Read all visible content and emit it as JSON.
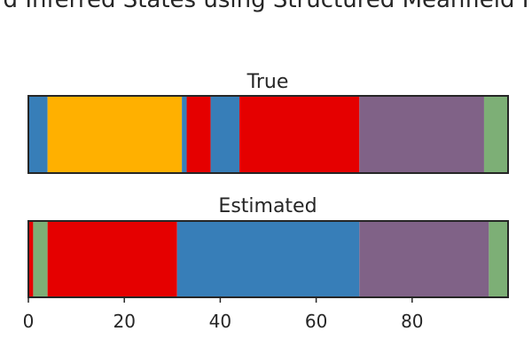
{
  "chart_data": {
    "type": "bar",
    "title": "d Inferred States using Structured Meanfield I",
    "xlim": [
      0,
      100
    ],
    "xticks": [
      0,
      20,
      40,
      60,
      80
    ],
    "grid": false,
    "panels": [
      {
        "title": "True",
        "segments": [
          {
            "start": 0,
            "end": 4,
            "color": "#377eb8"
          },
          {
            "start": 4,
            "end": 32,
            "color": "#ffb000"
          },
          {
            "start": 32,
            "end": 33,
            "color": "#377eb8"
          },
          {
            "start": 33,
            "end": 38,
            "color": "#e50000"
          },
          {
            "start": 38,
            "end": 44,
            "color": "#377eb8"
          },
          {
            "start": 44,
            "end": 69,
            "color": "#e50000"
          },
          {
            "start": 69,
            "end": 95,
            "color": "#806287"
          },
          {
            "start": 95,
            "end": 100,
            "color": "#7daf76"
          }
        ]
      },
      {
        "title": "Estimated",
        "segments": [
          {
            "start": 0,
            "end": 1,
            "color": "#e50000"
          },
          {
            "start": 1,
            "end": 4,
            "color": "#7daf76"
          },
          {
            "start": 4,
            "end": 31,
            "color": "#e50000"
          },
          {
            "start": 31,
            "end": 69,
            "color": "#377eb8"
          },
          {
            "start": 69,
            "end": 96,
            "color": "#806287"
          },
          {
            "start": 96,
            "end": 100,
            "color": "#7daf76"
          }
        ]
      }
    ]
  }
}
